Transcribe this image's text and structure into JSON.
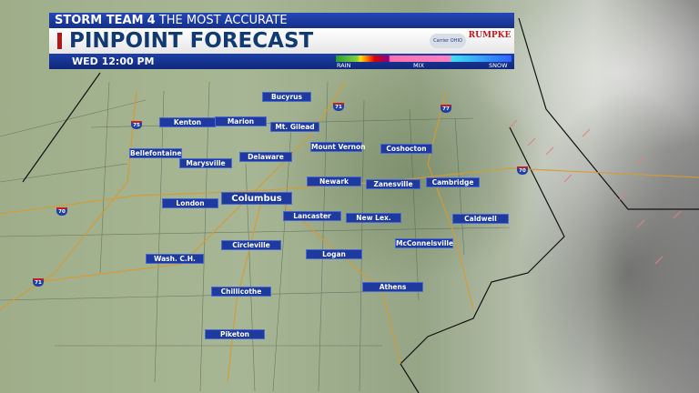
{
  "header": {
    "brand": "STORM TEAM",
    "brand_number": "4",
    "tagline": "THE MOST ACCURATE",
    "title": "PINPOINT FORECAST",
    "time": "WED 12:00 PM",
    "sponsors": [
      "Carrier OHIO",
      "RUMPKE"
    ],
    "legend": {
      "labels": [
        "RAIN",
        "MIX",
        "SNOW"
      ]
    }
  },
  "cities": [
    "Bucyrus",
    "Kenton",
    "Marion",
    "Mt. Gilead",
    "Mount Vernon",
    "Coshocton",
    "Bellefontaine",
    "Marysville",
    "Delaware",
    "Newark",
    "Zanesville",
    "Cambridge",
    "London",
    "Columbus",
    "Lancaster",
    "New Lex.",
    "Caldwell",
    "Circleville",
    "McConnelsville",
    "Logan",
    "Wash. C.H.",
    "Athens",
    "Chillicothe",
    "Piketon"
  ],
  "interstates": [
    "75",
    "71",
    "77",
    "70",
    "70",
    "71"
  ],
  "colors": {
    "label_bg": "#1e3a9e",
    "header_blue": "#1d3fa8",
    "title_text": "#123a72",
    "accent_red": "#b01818"
  }
}
